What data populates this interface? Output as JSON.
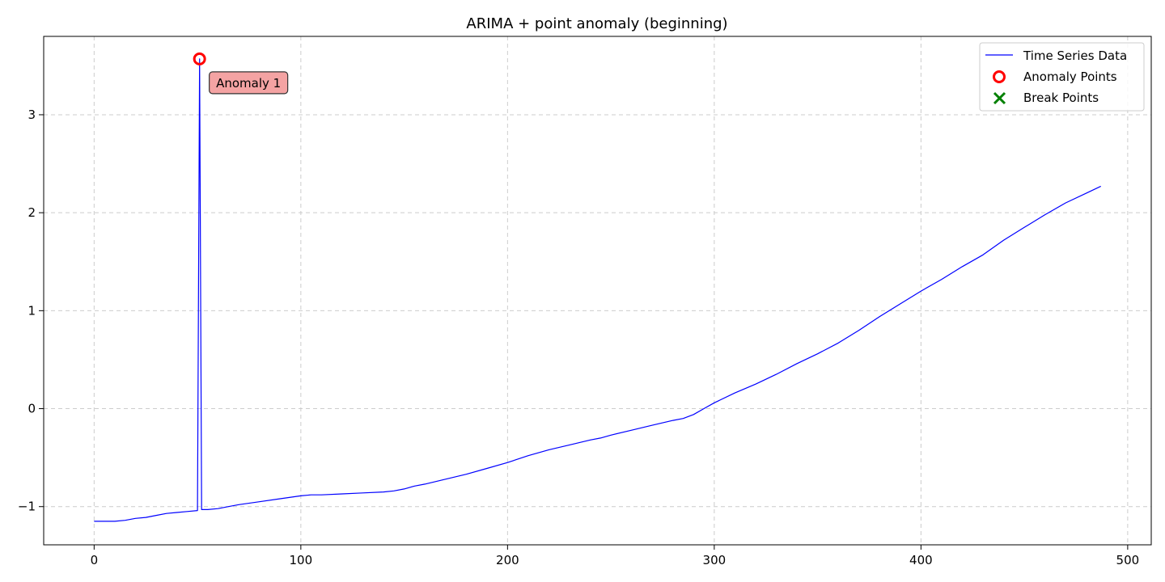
{
  "chart_data": {
    "type": "line",
    "title": "ARIMA + point anomaly (beginning)",
    "xlabel": "",
    "ylabel": "",
    "xlim": [
      -24.4,
      511.4
    ],
    "ylim": [
      -1.39,
      3.8
    ],
    "xticks": [
      0,
      100,
      200,
      300,
      400,
      500
    ],
    "yticks": [
      -1,
      0,
      1,
      2,
      3
    ],
    "grid": true,
    "legend_position": "top-right",
    "colors": {
      "series": "#0000ff",
      "anomaly": "#ff0000",
      "break": "#008000",
      "annotation_bg": "#f4a3a3",
      "grid": "#cccccc"
    },
    "series": [
      {
        "name": "Time Series Data",
        "x": [
          0,
          5,
          10,
          15,
          20,
          25,
          30,
          35,
          40,
          45,
          50,
          51,
          52,
          55,
          60,
          65,
          70,
          80,
          90,
          100,
          105,
          110,
          120,
          130,
          140,
          145,
          150,
          155,
          160,
          170,
          180,
          190,
          200,
          210,
          220,
          230,
          240,
          245,
          250,
          260,
          270,
          280,
          285,
          290,
          295,
          300,
          310,
          320,
          330,
          340,
          350,
          360,
          370,
          380,
          390,
          400,
          410,
          420,
          430,
          440,
          450,
          460,
          470,
          480,
          487
        ],
        "y": [
          -1.15,
          -1.15,
          -1.15,
          -1.14,
          -1.12,
          -1.11,
          -1.09,
          -1.07,
          -1.06,
          -1.05,
          -1.04,
          3.57,
          -1.03,
          -1.03,
          -1.02,
          -1.0,
          -0.98,
          -0.95,
          -0.92,
          -0.89,
          -0.88,
          -0.88,
          -0.87,
          -0.86,
          -0.85,
          -0.84,
          -0.82,
          -0.79,
          -0.77,
          -0.72,
          -0.67,
          -0.61,
          -0.55,
          -0.48,
          -0.42,
          -0.37,
          -0.32,
          -0.3,
          -0.27,
          -0.22,
          -0.17,
          -0.12,
          -0.1,
          -0.06,
          0.0,
          0.06,
          0.16,
          0.25,
          0.35,
          0.46,
          0.56,
          0.67,
          0.8,
          0.94,
          1.07,
          1.2,
          1.32,
          1.45,
          1.57,
          1.72,
          1.85,
          1.98,
          2.1,
          2.2,
          2.27
        ]
      }
    ],
    "anomalies": [
      {
        "x": 51,
        "y": 3.57,
        "label": "Anomaly 1"
      }
    ],
    "legend": [
      {
        "label": "Time Series Data",
        "marker": "line"
      },
      {
        "label": "Anomaly Points",
        "marker": "circle"
      },
      {
        "label": "Break Points",
        "marker": "x"
      }
    ]
  }
}
